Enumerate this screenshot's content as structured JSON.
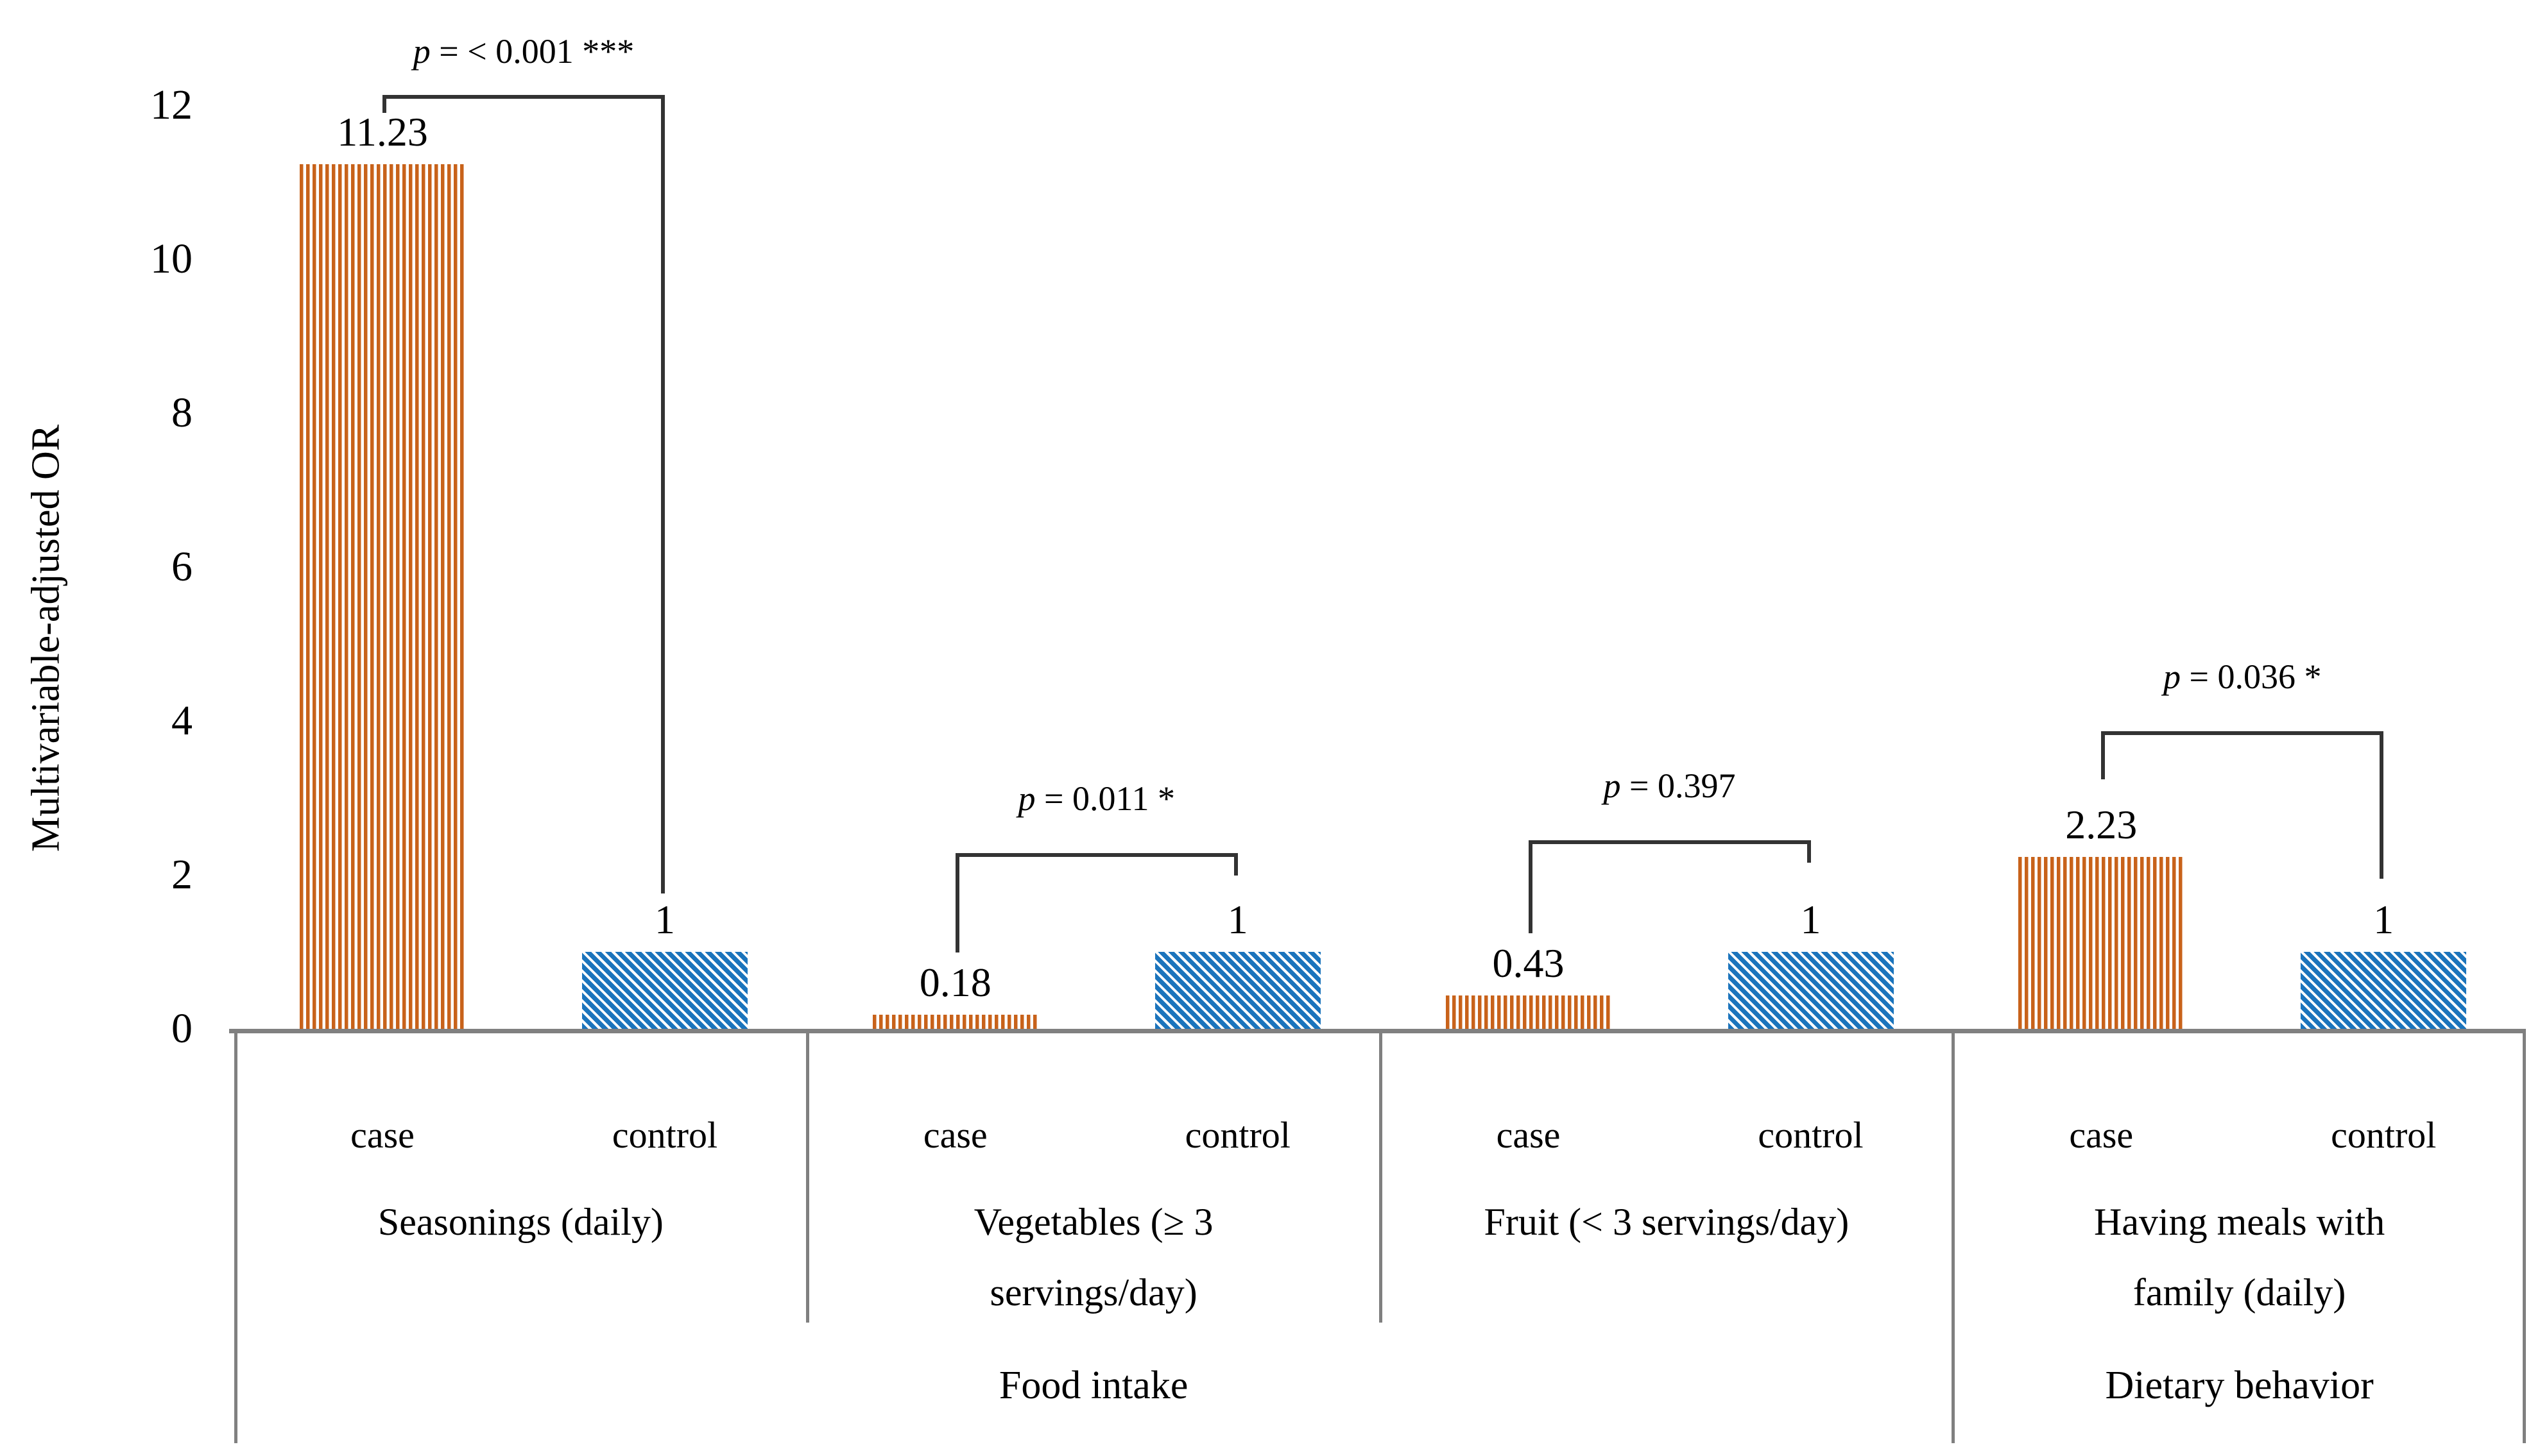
{
  "chart_data": {
    "type": "bar",
    "title": "",
    "ylabel": "Multivariable-adjusted OR",
    "xlabel": "",
    "ylim": [
      0,
      12
    ],
    "yticks": [
      "0",
      "2",
      "4",
      "6",
      "8",
      "10",
      "12"
    ],
    "grid": false,
    "legend_position": "none",
    "bar_sublabels": [
      "case",
      "control"
    ],
    "categories": [
      "Seasonings (daily)",
      "Vegetables (≥ 3 servings/day)",
      "Fruit (< 3 servings/day)",
      "Having meals with family (daily)"
    ],
    "group_label_lines": [
      [
        "Seasonings (daily)"
      ],
      [
        "Vegetables (≥ 3",
        "servings/day)"
      ],
      [
        "Fruit (< 3 servings/day)"
      ],
      [
        "Having meals with",
        "family (daily)"
      ]
    ],
    "category_tiers": [
      {
        "label": "Food intake",
        "group_span": [
          0,
          2
        ]
      },
      {
        "label": "Dietary behavior",
        "group_span": [
          3,
          3
        ]
      }
    ],
    "series": [
      {
        "name": "case",
        "pattern": "vertical-stripes",
        "color": "#C8621A",
        "values": [
          11.23,
          0.18,
          0.43,
          2.23
        ]
      },
      {
        "name": "control",
        "pattern": "diagonal-stripes",
        "color": "#1B74BC",
        "values": [
          1,
          1,
          1,
          1
        ]
      }
    ],
    "value_labels": {
      "case": [
        "11.23",
        "0.18",
        "0.43",
        "2.23"
      ],
      "control": [
        "1",
        "1",
        "1",
        "1"
      ]
    },
    "p_annotations": [
      {
        "symbol": "p",
        "rest": "= < 0.001 ***"
      },
      {
        "symbol": "p",
        "rest": "= 0.011 *"
      },
      {
        "symbol": "p",
        "rest": "= 0.397"
      },
      {
        "symbol": "p",
        "rest": "= 0.036 *"
      }
    ]
  },
  "colors": {
    "case_orange": "#C8621A",
    "control_blue": "#1B74BC",
    "axis_gray": "#808080",
    "bracket_dark": "#333333",
    "text": "#000000"
  }
}
